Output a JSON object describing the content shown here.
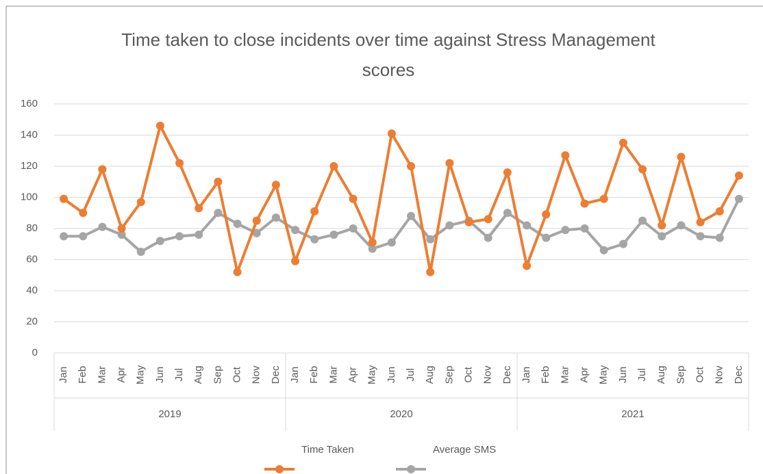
{
  "chart_data": {
    "type": "line",
    "title": "Time taken to close incidents over time against Stress Management scores",
    "categories": [
      "Jan",
      "Feb",
      "Mar",
      "Apr",
      "May",
      "Jun",
      "Jul",
      "Aug",
      "Sep",
      "Oct",
      "Nov",
      "Dec",
      "Jan",
      "Feb",
      "Mar",
      "Apr",
      "May",
      "Jun",
      "Jul",
      "Aug",
      "Sep",
      "Oct",
      "Nov",
      "Dec",
      "Jan",
      "Feb",
      "Mar",
      "Apr",
      "May",
      "Jun",
      "Jul",
      "Aug",
      "Sep",
      "Oct",
      "Nov",
      "Dec"
    ],
    "groups": [
      "2019",
      "2020",
      "2021"
    ],
    "series": [
      {
        "name": "Time Taken",
        "color": "#ed7d31",
        "values": [
          99,
          90,
          118,
          80,
          97,
          146,
          122,
          93,
          110,
          52,
          85,
          108,
          59,
          91,
          120,
          99,
          71,
          141,
          120,
          52,
          122,
          84,
          86,
          116,
          56,
          89,
          127,
          96,
          99,
          135,
          118,
          82,
          126,
          84,
          91,
          114
        ]
      },
      {
        "name": "Average SMS",
        "color": "#a5a5a5",
        "values": [
          75,
          75,
          81,
          76,
          65,
          72,
          75,
          76,
          90,
          83,
          77,
          87,
          79,
          73,
          76,
          80,
          67,
          71,
          88,
          73,
          82,
          85,
          74,
          90,
          82,
          74,
          79,
          80,
          66,
          70,
          85,
          75,
          82,
          75,
          74,
          99
        ]
      }
    ],
    "ylim": [
      0,
      160
    ],
    "yticks": [
      0,
      20,
      40,
      60,
      80,
      100,
      120,
      140,
      160
    ],
    "grid": true,
    "legend": "bottom"
  }
}
